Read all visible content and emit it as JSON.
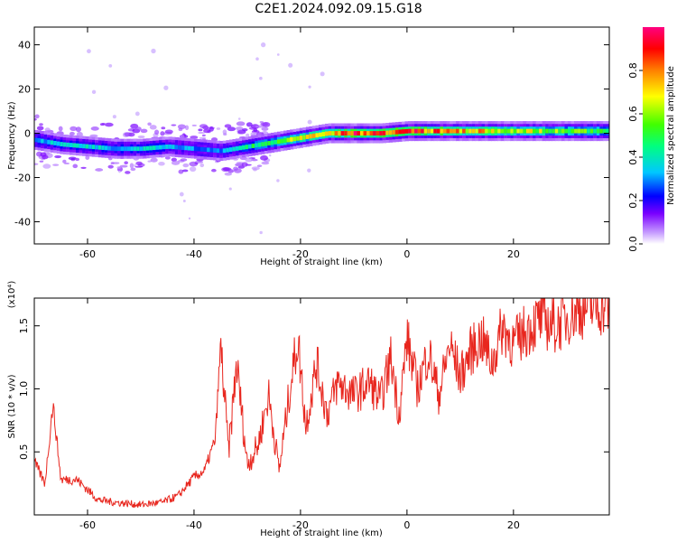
{
  "title": "C2E1.2024.092.09.15.G18",
  "chart_data": [
    {
      "type": "heatmap",
      "title": "C2E1.2024.092.09.15.G18",
      "xlabel": "Height of straight line (km)",
      "ylabel": "Frequency (Hz)",
      "xlim": [
        -70,
        38
      ],
      "ylim": [
        -50,
        48
      ],
      "xticks": [
        -60,
        -40,
        -20,
        0,
        20
      ],
      "yticks": [
        -40,
        -20,
        0,
        20,
        40
      ],
      "colorbar": {
        "label": "Normalized spectral amplitude",
        "range": [
          0,
          1
        ],
        "ticks": [
          0.0,
          0.2,
          0.4,
          0.6,
          0.8
        ],
        "colors": [
          "#ffffff",
          "#c8a0ff",
          "#7a00ff",
          "#0000ff",
          "#00c8ff",
          "#00ff80",
          "#40ff00",
          "#ffff00",
          "#ff8000",
          "#ff0000",
          "#ff0080"
        ]
      },
      "ridge": {
        "description": "dominant frequency vs height",
        "x": [
          -70,
          -65,
          -60,
          -55,
          -50,
          -45,
          -40,
          -35,
          -30,
          -25,
          -20,
          -15,
          -10,
          -5,
          0,
          5,
          10,
          20,
          30,
          38
        ],
        "y": [
          -3,
          -5,
          -6,
          -7,
          -7,
          -6,
          -7,
          -8,
          -6,
          -4,
          -2,
          0,
          0,
          0,
          1,
          1,
          1,
          1,
          1,
          1
        ],
        "peak_amplitude": [
          0.35,
          0.4,
          0.4,
          0.35,
          0.4,
          0.35,
          0.3,
          0.3,
          0.45,
          0.6,
          0.7,
          0.75,
          0.95,
          0.9,
          0.95,
          0.9,
          0.8,
          0.7,
          0.6,
          0.55
        ]
      }
    },
    {
      "type": "line",
      "xlabel": "Height of straight line (km)",
      "ylabel": "SNR (10 * v/v)",
      "y_multiplier": "(x10⁴)",
      "xlim": [
        -70,
        38
      ],
      "ylim": [
        0.0,
        1.72
      ],
      "xticks": [
        -60,
        -40,
        -20,
        0,
        20
      ],
      "yticks": [
        0.5,
        1.0,
        1.5
      ],
      "color": "#e8261e",
      "series": [
        {
          "x": [
            -70,
            -68,
            -66.5,
            -65,
            -62,
            -58,
            -55,
            -50,
            -46,
            -43,
            -40,
            -38,
            -36,
            -35,
            -33.5,
            -32,
            -30,
            -28,
            -26,
            -24,
            -22,
            -20.5,
            -19,
            -17,
            -15,
            -13,
            -10,
            -7,
            -5,
            -3,
            -1.5,
            0,
            2,
            4,
            6,
            8,
            10,
            12,
            14,
            16,
            18,
            20,
            22,
            25,
            28,
            31,
            34,
            38
          ],
          "y": [
            0.42,
            0.25,
            0.88,
            0.28,
            0.28,
            0.12,
            0.1,
            0.08,
            0.1,
            0.15,
            0.3,
            0.35,
            0.6,
            1.35,
            0.5,
            1.2,
            0.4,
            0.55,
            0.95,
            0.35,
            1.0,
            1.4,
            0.7,
            1.2,
            0.8,
            1.05,
            0.95,
            1.05,
            0.9,
            1.25,
            0.8,
            1.4,
            1.0,
            1.3,
            0.95,
            1.35,
            1.1,
            1.3,
            1.4,
            1.2,
            1.5,
            1.35,
            1.45,
            1.55,
            1.5,
            1.6,
            1.65,
            1.66
          ]
        }
      ]
    }
  ]
}
